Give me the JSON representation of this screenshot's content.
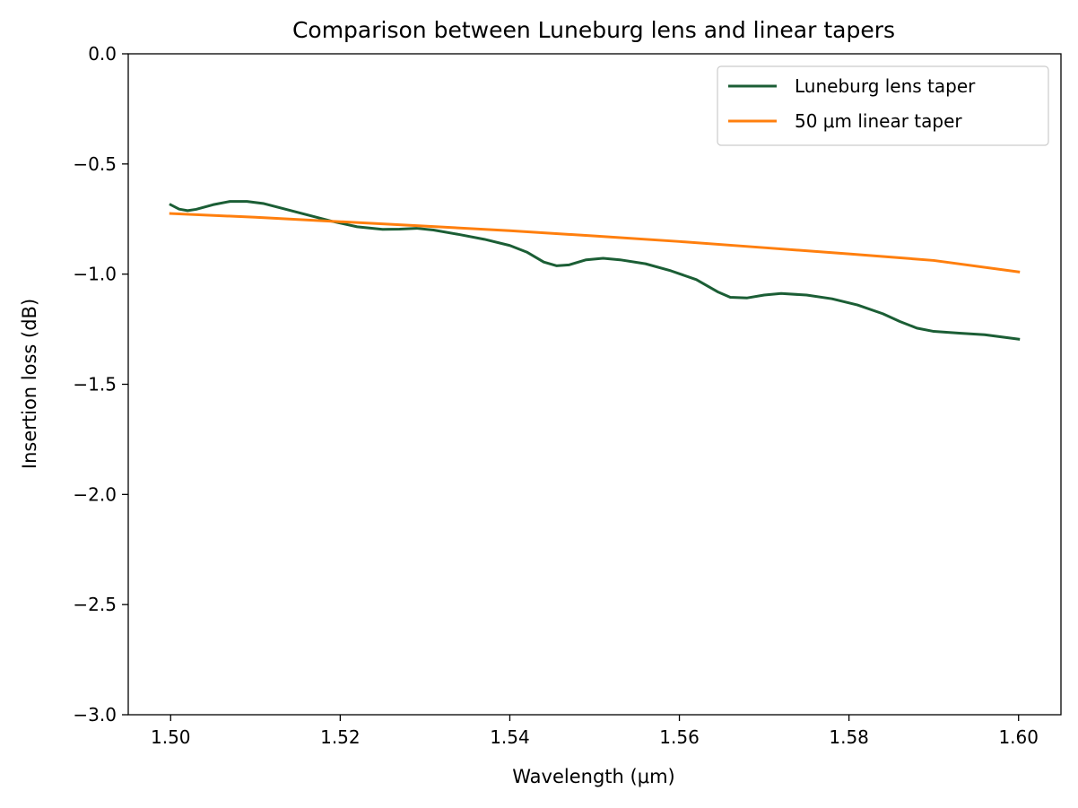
{
  "chart_data": {
    "type": "line",
    "title": "Comparison between Luneburg lens and linear tapers",
    "xlabel": "Wavelength (μm)",
    "ylabel": "Insertion loss (dB)",
    "xlim": [
      1.495,
      1.605
    ],
    "ylim": [
      -3.0,
      0.0
    ],
    "xticks": [
      1.5,
      1.52,
      1.54,
      1.56,
      1.58,
      1.6
    ],
    "xtick_labels": [
      "1.50",
      "1.52",
      "1.54",
      "1.56",
      "1.58",
      "1.60"
    ],
    "yticks": [
      0.0,
      -0.5,
      -1.0,
      -1.5,
      -2.0,
      -2.5,
      -3.0
    ],
    "ytick_labels": [
      "0.0",
      "−0.5",
      "−1.0",
      "−1.5",
      "−2.0",
      "−2.5",
      "−3.0"
    ],
    "grid": false,
    "legend_position": "top-right",
    "series": [
      {
        "name": "Luneburg lens taper",
        "color": "#1b5e35",
        "x": [
          1.5,
          1.501,
          1.502,
          1.503,
          1.505,
          1.507,
          1.509,
          1.511,
          1.513,
          1.516,
          1.519,
          1.522,
          1.525,
          1.527,
          1.529,
          1.531,
          1.534,
          1.537,
          1.54,
          1.542,
          1.544,
          1.5455,
          1.547,
          1.549,
          1.551,
          1.553,
          1.556,
          1.559,
          1.562,
          1.5645,
          1.566,
          1.568,
          1.57,
          1.572,
          1.575,
          1.578,
          1.581,
          1.584,
          1.586,
          1.588,
          1.59,
          1.593,
          1.596,
          1.6
        ],
        "y": [
          -0.685,
          -0.705,
          -0.712,
          -0.706,
          -0.685,
          -0.67,
          -0.67,
          -0.68,
          -0.7,
          -0.73,
          -0.76,
          -0.785,
          -0.797,
          -0.796,
          -0.792,
          -0.8,
          -0.82,
          -0.842,
          -0.87,
          -0.9,
          -0.945,
          -0.962,
          -0.958,
          -0.935,
          -0.928,
          -0.935,
          -0.953,
          -0.985,
          -1.025,
          -1.08,
          -1.105,
          -1.108,
          -1.095,
          -1.088,
          -1.095,
          -1.112,
          -1.14,
          -1.18,
          -1.215,
          -1.245,
          -1.26,
          -1.268,
          -1.275,
          -1.295
        ]
      },
      {
        "name": "50 μm linear taper",
        "color": "#ff7f0e",
        "x": [
          1.5,
          1.51,
          1.52,
          1.53,
          1.54,
          1.55,
          1.56,
          1.57,
          1.58,
          1.59,
          1.6
        ],
        "y": [
          -0.725,
          -0.742,
          -0.762,
          -0.782,
          -0.803,
          -0.827,
          -0.852,
          -0.88,
          -0.908,
          -0.938,
          -0.99
        ]
      }
    ]
  }
}
